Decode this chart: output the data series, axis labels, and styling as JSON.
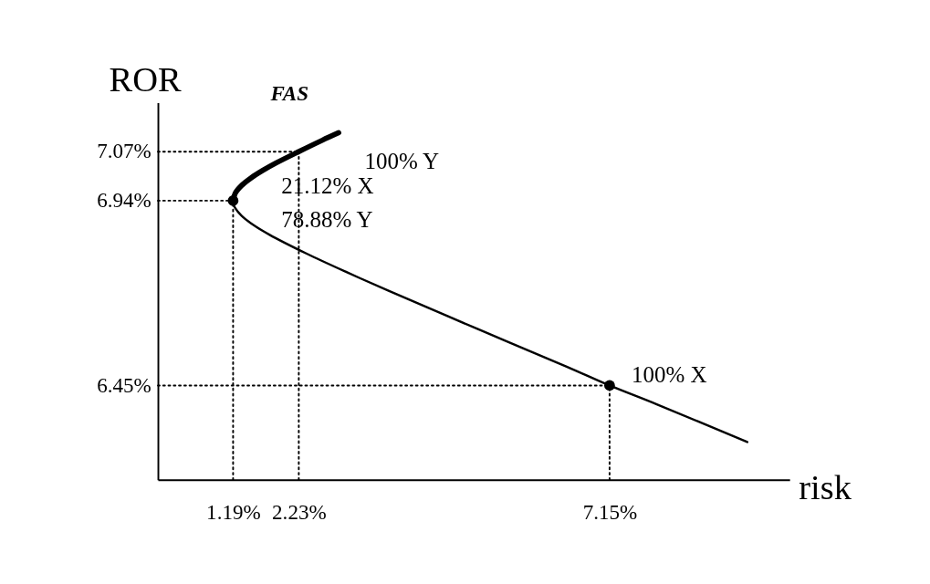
{
  "chart_data": {
    "type": "line",
    "xlabel": "risk",
    "ylabel": "ROR",
    "xlim": [
      0,
      10
    ],
    "ylim": [
      6.2,
      7.2
    ],
    "xticks": [
      {
        "value": 1.19,
        "label": "1.19%"
      },
      {
        "value": 2.23,
        "label": "2.23%"
      },
      {
        "value": 7.15,
        "label": "7.15%"
      }
    ],
    "yticks": [
      {
        "value": 6.45,
        "label": "6.45%"
      },
      {
        "value": 6.94,
        "label": "6.94%"
      },
      {
        "value": 7.07,
        "label": "7.07%"
      }
    ],
    "grid": false,
    "series": [
      {
        "color": "#000000",
        "line_style": "solid",
        "x": [
          1.19,
          1.225,
          1.323,
          1.473,
          1.659,
          1.872,
          2.23,
          2.601,
          2.861
        ],
        "values": [
          6.94,
          6.96,
          6.98,
          7.0,
          7.02,
          7.04,
          7.07,
          7.1,
          7.12
        ]
      },
      {
        "color": "#000000",
        "line_style": "solid",
        "x": [
          1.19,
          1.199,
          1.225,
          1.323,
          1.473,
          1.763,
          2.348,
          2.993,
          3.668,
          5.058,
          6.471,
          7.15,
          7.897,
          9.33
        ],
        "values": [
          6.94,
          6.93,
          6.92,
          6.9,
          6.88,
          6.85,
          6.8,
          6.75,
          6.7,
          6.6,
          6.5,
          6.45,
          6.4,
          6.3
        ]
      },
      {
        "color": "#000000",
        "line_style": "dotted",
        "x": [
          0,
          1.19
        ],
        "values": [
          6.94,
          6.94
        ]
      },
      {
        "color": "#000000",
        "line_style": "dotted",
        "x": [
          1.19,
          1.19
        ],
        "values": [
          6.2,
          6.94
        ]
      },
      {
        "color": "#000000",
        "line_style": "dotted",
        "x": [
          0,
          2.23
        ],
        "values": [
          7.07,
          7.07
        ]
      },
      {
        "color": "#000000",
        "line_style": "dotted",
        "x": [
          2.23,
          2.23
        ],
        "values": [
          6.2,
          7.07
        ]
      },
      {
        "color": "#000000",
        "line_style": "dotted",
        "x": [
          0,
          7.15
        ],
        "values": [
          6.45,
          6.45
        ]
      },
      {
        "color": "#000000",
        "line_style": "dotted",
        "x": [
          7.15,
          7.15
        ],
        "values": [
          6.2,
          6.45
        ]
      },
      {
        "type": "scatter",
        "color": "#000000",
        "marker": "circle",
        "x": [
          1.19,
          7.15
        ],
        "values": [
          6.94,
          6.45
        ]
      }
    ],
    "annotations": [
      "FAS",
      {
        "text": "100% Y",
        "x": 2.23,
        "y": 7.07
      },
      {
        "text": "21.12% X",
        "x": 1.19,
        "y": 6.94
      },
      {
        "text": "78.88% Y",
        "x": 1.19,
        "y": 6.94
      },
      {
        "text": "100% X",
        "x": 7.15,
        "y": 6.45
      }
    ]
  }
}
